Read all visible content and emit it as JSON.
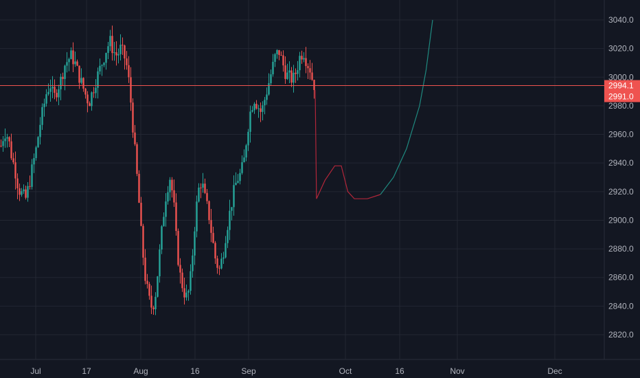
{
  "colors": {
    "background": "#131722",
    "grid": "#232733",
    "axis_text": "#b2b5be",
    "up": "#26a69a",
    "down": "#ef5350",
    "price_line": "#ef5350",
    "price_tag": "#ef5350"
  },
  "chart_data": {
    "type": "candlestick",
    "title": "",
    "grid": true,
    "x_axis": {
      "ticks": [
        "Jul",
        "17",
        "Aug",
        "16",
        "Sep",
        "Oct",
        "16",
        "Nov",
        "Dec"
      ]
    },
    "y_axis": {
      "side": "right",
      "range": [
        2805,
        3052
      ],
      "ticks": [
        "3040.0",
        "3020.0",
        "3000.0",
        "2980.0",
        "2960.0",
        "2940.0",
        "2920.0",
        "2900.0",
        "2880.0",
        "2860.0",
        "2840.0",
        "2820.0"
      ]
    },
    "price_markers": [
      {
        "label": "2994.1",
        "value": 2994.1
      },
      {
        "label": "2991.0",
        "value": 2991.0
      }
    ],
    "candles_close_path": [
      2952,
      2962,
      2958,
      2945,
      2935,
      2922,
      2918,
      2915,
      2925,
      2938,
      2950,
      2966,
      2978,
      2990,
      2995,
      2985,
      2992,
      2998,
      3008,
      3012,
      3015,
      3010,
      3002,
      2995,
      2988,
      2982,
      2990,
      2998,
      3005,
      3012,
      3020,
      3025,
      3018,
      3015,
      3020,
      3015,
      3005,
      2980,
      2950,
      2920,
      2885,
      2860,
      2845,
      2838,
      2850,
      2875,
      2900,
      2920,
      2930,
      2915,
      2880,
      2860,
      2850,
      2845,
      2862,
      2895,
      2920,
      2928,
      2915,
      2905,
      2888,
      2872,
      2865,
      2875,
      2892,
      2905,
      2918,
      2928,
      2932,
      2940,
      2962,
      2978,
      2985,
      2980,
      2975,
      2985,
      2995,
      3005,
      3015,
      3018,
      3010,
      3002,
      3000,
      2998,
      3005,
      3015,
      3018,
      3010,
      3005,
      2991
    ],
    "projection": {
      "down_segment": [
        [
          0,
          2991
        ],
        [
          0.4,
          2915
        ],
        [
          3,
          2928
        ],
        [
          6,
          2938
        ],
        [
          8,
          2938
        ],
        [
          10,
          2920
        ],
        [
          12,
          2915
        ],
        [
          16,
          2915
        ],
        [
          20,
          2918
        ]
      ],
      "up_segment": [
        [
          20,
          2918
        ],
        [
          24,
          2930
        ],
        [
          28,
          2950
        ],
        [
          32,
          2980
        ],
        [
          34,
          3005
        ],
        [
          36,
          3040
        ]
      ]
    }
  }
}
